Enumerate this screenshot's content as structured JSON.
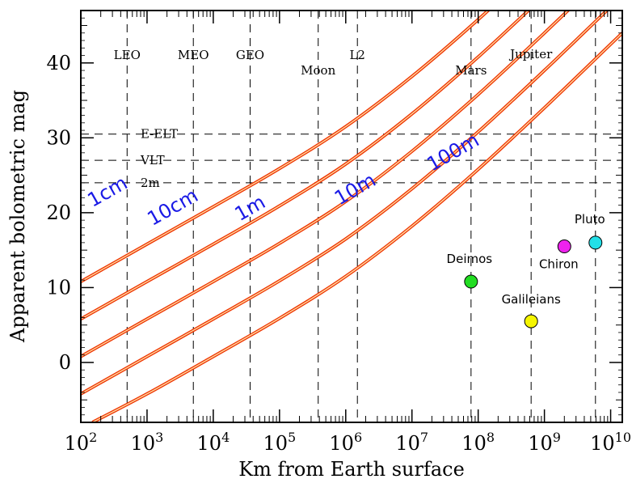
{
  "chart_data": {
    "type": "line",
    "xlabel": "Km from Earth surface",
    "ylabel": "Apparent bolometric mag",
    "xscale": "log",
    "xlim": [
      100,
      15000000000
    ],
    "ylim": [
      -8,
      47
    ],
    "x_ticks": [
      {
        "base": "10",
        "exp": "2"
      },
      {
        "base": "10",
        "exp": "3"
      },
      {
        "base": "10",
        "exp": "4"
      },
      {
        "base": "10",
        "exp": "5"
      },
      {
        "base": "10",
        "exp": "6"
      },
      {
        "base": "10",
        "exp": "7"
      },
      {
        "base": "10",
        "exp": "8"
      },
      {
        "base": "10",
        "exp": "9"
      },
      {
        "base": "10",
        "exp": "10"
      }
    ],
    "y_ticks": [
      "0",
      "10",
      "20",
      "30",
      "40"
    ],
    "vertical_markers": [
      {
        "label": "LEO",
        "x": 500
      },
      {
        "label": "MEO",
        "x": 5000
      },
      {
        "label": "GEO",
        "x": 36000
      },
      {
        "label": "Moon",
        "x": 384000
      },
      {
        "label": "L2",
        "x": 1500000
      },
      {
        "label": "Mars",
        "x": 78000000
      },
      {
        "label": "Jupiter",
        "x": 630000000
      },
      {
        "label": "",
        "x": 5900000000
      }
    ],
    "horizontal_markers": [
      {
        "label": "E-ELT",
        "y": 30.5
      },
      {
        "label": "VLT",
        "y": 27
      },
      {
        "label": "2m",
        "y": 24
      }
    ],
    "series": [
      {
        "name": "1cm",
        "x": [
          100,
          1000,
          10000,
          100000,
          1000000,
          10000000,
          100000000,
          1000000000
        ],
        "y": [
          10.8,
          15.8,
          20.8,
          25.9,
          31.5,
          38.2,
          45.8,
          54
        ]
      },
      {
        "name": "10cm",
        "x": [
          100,
          1000,
          10000,
          100000,
          1000000,
          10000000,
          100000000,
          1000000000
        ],
        "y": [
          5.8,
          10.8,
          15.8,
          20.9,
          26.5,
          33.2,
          40.8,
          49
        ]
      },
      {
        "name": "1m",
        "x": [
          100,
          1000,
          10000,
          100000,
          1000000,
          10000000,
          100000000,
          1000000000,
          10000000000
        ],
        "y": [
          0.8,
          5.8,
          10.8,
          15.9,
          21.5,
          28.2,
          35.8,
          44,
          52.5
        ]
      },
      {
        "name": "10m",
        "x": [
          100,
          1000,
          10000,
          100000,
          1000000,
          10000000,
          100000000,
          1000000000,
          10000000000
        ],
        "y": [
          -4.2,
          0.8,
          5.8,
          10.9,
          16.5,
          23.2,
          30.8,
          39,
          47.5
        ]
      },
      {
        "name": "100m",
        "x": [
          150,
          1000,
          10000,
          100000,
          1000000,
          10000000,
          100000000,
          1000000000,
          10000000000,
          15000000000
        ],
        "y": [
          -8,
          -4.2,
          0.8,
          5.9,
          11.5,
          18.2,
          25.8,
          34,
          42.5,
          44
        ]
      }
    ],
    "points": [
      {
        "name": "Deimos",
        "x": 78000000,
        "y": 10.8,
        "color": "#22dd22"
      },
      {
        "name": "Galileians",
        "x": 630000000,
        "y": 5.5,
        "color": "#f5f500"
      },
      {
        "name": "Chiron",
        "x": 2000000000,
        "y": 15.5,
        "color": "#ee22ee"
      },
      {
        "name": "Pluto",
        "x": 5900000000,
        "y": 16,
        "color": "#22e0e8"
      }
    ]
  }
}
